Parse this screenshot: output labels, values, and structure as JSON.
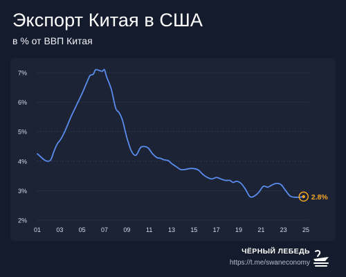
{
  "title": "Экспорт Китая в США",
  "subtitle": "в % от ВВП Китая",
  "brand": {
    "name": "ЧЁРНЫЙ ЛЕБЕДЬ",
    "link": "https://t.me/swaneconomy",
    "icon": "swan-logo-icon"
  },
  "colors": {
    "background": "#141b2c",
    "panel": "#1b2335",
    "line": "#5b8def",
    "highlight": "#f5a623",
    "grid": "#3a4356"
  },
  "chart_data": {
    "type": "line",
    "title": "Экспорт Китая в США",
    "subtitle": "в % от ВВП Китая",
    "x_tick_labels": [
      "01",
      "03",
      "05",
      "07",
      "09",
      "11",
      "13",
      "15",
      "17",
      "19",
      "21",
      "23",
      "25"
    ],
    "x_ticks": [
      2001,
      2003,
      2005,
      2007,
      2009,
      2011,
      2013,
      2015,
      2017,
      2019,
      2021,
      2023,
      2025
    ],
    "xlim": [
      2001,
      2025
    ],
    "y_tick_labels": [
      "2%",
      "3%",
      "4%",
      "5%",
      "6%",
      "7%"
    ],
    "y_ticks": [
      2,
      3,
      4,
      5,
      6,
      7
    ],
    "ylim": [
      2,
      7
    ],
    "grid": "horizontal dotted",
    "series": [
      {
        "x": [
          2001.0,
          2001.3,
          2001.6,
          2001.9,
          2002.2,
          2002.5,
          2002.8,
          2003.1,
          2003.5,
          2004.0,
          2004.5,
          2005.0,
          2005.4,
          2005.7,
          2006.0,
          2006.2,
          2006.5,
          2006.8,
          2007.0,
          2007.2,
          2007.6,
          2008.0,
          2008.3,
          2008.6,
          2009.0,
          2009.4,
          2009.8,
          2010.2,
          2010.5,
          2010.9,
          2011.3,
          2011.7,
          2012.0,
          2012.3,
          2012.7,
          2013.0,
          2013.4,
          2013.8,
          2014.2,
          2014.6,
          2015.0,
          2015.4,
          2015.8,
          2016.2,
          2016.6,
          2017.0,
          2017.4,
          2017.8,
          2018.2,
          2018.5,
          2018.8,
          2019.2,
          2019.6,
          2020.0,
          2020.4,
          2020.8,
          2021.2,
          2021.6,
          2022.0,
          2022.4,
          2022.8,
          2023.2,
          2023.6,
          2024.0,
          2024.4,
          2024.8
        ],
        "values": [
          4.25,
          4.15,
          4.05,
          4.0,
          4.05,
          4.35,
          4.6,
          4.75,
          5.05,
          5.5,
          5.9,
          6.3,
          6.65,
          6.9,
          6.95,
          7.1,
          7.08,
          7.05,
          7.1,
          6.85,
          6.45,
          5.8,
          5.65,
          5.4,
          4.8,
          4.35,
          4.2,
          4.45,
          4.5,
          4.45,
          4.25,
          4.12,
          4.1,
          4.05,
          4.02,
          3.92,
          3.82,
          3.72,
          3.72,
          3.75,
          3.75,
          3.7,
          3.55,
          3.45,
          3.4,
          3.45,
          3.4,
          3.35,
          3.35,
          3.28,
          3.32,
          3.25,
          3.05,
          2.8,
          2.82,
          2.95,
          3.15,
          3.12,
          3.2,
          3.25,
          3.2,
          3.0,
          2.82,
          2.78,
          2.78,
          2.8
        ]
      }
    ],
    "highlight": {
      "x": 2024.8,
      "value": 2.8,
      "label": "2.8%"
    }
  }
}
